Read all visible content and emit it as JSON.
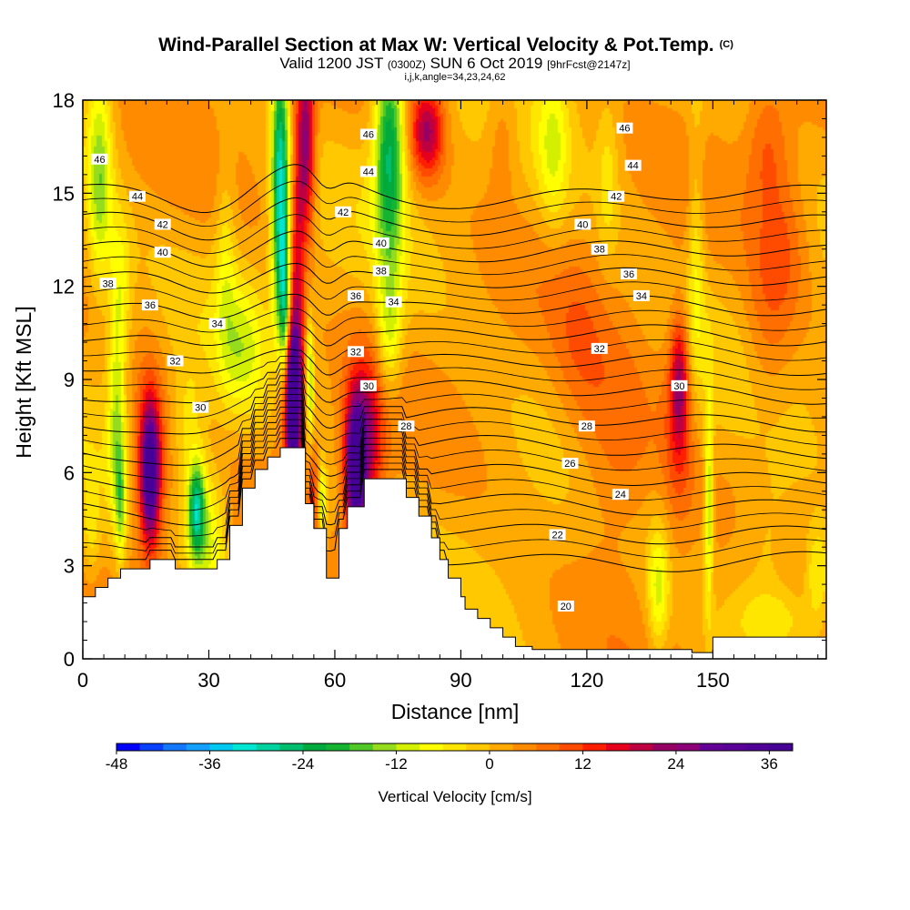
{
  "chart_data": {
    "type": "heatmap",
    "title": "Wind-Parallel Section at Max W: Vertical Velocity & Pot.Temp.",
    "title_unit": "(C)",
    "subtitle_parts": [
      "Valid 1200 JST ",
      "(0300Z)",
      " SUN 6 Oct 2019 ",
      "[9hrFcst@2147z]"
    ],
    "subtitle2": "i,j,k,angle=34,23,24,62",
    "xlabel": "Distance [nm]",
    "ylabel": "Height [Kft MSL]",
    "xlim": [
      0,
      177
    ],
    "ylim": [
      0,
      18
    ],
    "xticks": [
      0,
      30,
      60,
      90,
      120,
      150
    ],
    "yticks": [
      0,
      3,
      6,
      9,
      12,
      15,
      18
    ],
    "colorbar": {
      "label": "Vertical Velocity [cm/s]",
      "min": -48,
      "max": 39,
      "step": 3,
      "ticks": [
        -48,
        -36,
        -24,
        -12,
        0,
        12,
        24,
        36
      ],
      "colors": [
        "#0000ff",
        "#0a40ff",
        "#1478ff",
        "#14a0ff",
        "#00c8f0",
        "#00e6d2",
        "#00d2a0",
        "#00be6e",
        "#00aa3c",
        "#14b432",
        "#50c828",
        "#96dc1e",
        "#d2f000",
        "#ffff00",
        "#ffe600",
        "#ffc800",
        "#ffaa00",
        "#ff8c00",
        "#ff6e00",
        "#ff4b00",
        "#ff1e00",
        "#e6001e",
        "#be0041",
        "#960064",
        "#8c0078",
        "#640096",
        "#5a0096",
        "#500096",
        "#460096"
      ]
    },
    "terrain": [
      [
        0,
        2.0
      ],
      [
        3,
        2.0
      ],
      [
        3,
        2.3
      ],
      [
        6,
        2.3
      ],
      [
        6,
        2.6
      ],
      [
        9,
        2.6
      ],
      [
        9,
        2.9
      ],
      [
        16,
        2.9
      ],
      [
        16,
        3.2
      ],
      [
        22,
        3.2
      ],
      [
        22,
        2.9
      ],
      [
        32,
        2.9
      ],
      [
        32,
        3.2
      ],
      [
        35,
        3.2
      ],
      [
        35,
        4.3
      ],
      [
        38,
        4.3
      ],
      [
        38,
        5.5
      ],
      [
        41,
        5.5
      ],
      [
        41,
        6.1
      ],
      [
        44,
        6.1
      ],
      [
        44,
        6.5
      ],
      [
        47,
        6.5
      ],
      [
        47,
        6.8
      ],
      [
        53,
        6.8
      ],
      [
        53,
        5.0
      ],
      [
        55,
        5.0
      ],
      [
        55,
        4.2
      ],
      [
        58,
        4.2
      ],
      [
        58,
        2.6
      ],
      [
        61,
        2.6
      ],
      [
        61,
        4.2
      ],
      [
        63,
        4.2
      ],
      [
        63,
        4.9
      ],
      [
        67,
        4.9
      ],
      [
        67,
        5.8
      ],
      [
        77,
        5.8
      ],
      [
        77,
        5.2
      ],
      [
        80,
        5.2
      ],
      [
        80,
        4.6
      ],
      [
        83,
        4.6
      ],
      [
        83,
        3.9
      ],
      [
        85,
        3.9
      ],
      [
        85,
        3.2
      ],
      [
        87,
        3.2
      ],
      [
        87,
        2.6
      ],
      [
        90,
        2.6
      ],
      [
        90,
        2.0
      ],
      [
        91,
        2.0
      ],
      [
        91,
        1.6
      ],
      [
        94,
        1.6
      ],
      [
        94,
        1.3
      ],
      [
        97,
        1.3
      ],
      [
        97,
        1.0
      ],
      [
        100,
        1.0
      ],
      [
        100,
        0.7
      ],
      [
        103,
        0.7
      ],
      [
        103,
        0.4
      ],
      [
        107,
        0.4
      ],
      [
        107,
        0.3
      ],
      [
        145,
        0.3
      ],
      [
        145,
        0.2
      ],
      [
        150,
        0.2
      ],
      [
        150,
        0.7
      ],
      [
        177,
        0.7
      ]
    ],
    "vertical_velocity_features": [
      {
        "x": 50,
        "z": 7.9,
        "rx": 1.4,
        "rz": 2.2,
        "w": 40
      },
      {
        "x": 50,
        "z": 8.6,
        "rx": 3.5,
        "rz": 2.4,
        "w": 18
      },
      {
        "x": 51,
        "z": 12.0,
        "rx": 1.6,
        "rz": 4.0,
        "w": 14
      },
      {
        "x": 53,
        "z": 16.5,
        "rx": 2.2,
        "rz": 3.0,
        "w": 24
      },
      {
        "x": 47,
        "z": 15.0,
        "rx": 2.0,
        "rz": 4.5,
        "w": -32
      },
      {
        "x": 48,
        "z": 11.5,
        "rx": 1.2,
        "rz": 2.5,
        "w": -18
      },
      {
        "x": 54,
        "z": 9.0,
        "rx": 1.0,
        "rz": 2.0,
        "w": -18
      },
      {
        "x": 55,
        "z": 5.3,
        "rx": 1.2,
        "rz": 1.5,
        "w": 10
      },
      {
        "x": 57,
        "z": 5.0,
        "rx": 1.0,
        "rz": 1.2,
        "w": -14
      },
      {
        "x": 65,
        "z": 6.0,
        "rx": 2.2,
        "rz": 2.0,
        "w": 36
      },
      {
        "x": 67,
        "z": 7.0,
        "rx": 4.5,
        "rz": 2.5,
        "w": 20
      },
      {
        "x": 73,
        "z": 10.5,
        "rx": 3.0,
        "rz": 2.2,
        "w": -12
      },
      {
        "x": 73,
        "z": 16.5,
        "rx": 3.5,
        "rz": 3.5,
        "w": -26
      },
      {
        "x": 82,
        "z": 17.0,
        "rx": 4.0,
        "rz": 1.5,
        "w": 20
      },
      {
        "x": 4,
        "z": 15.5,
        "rx": 3.0,
        "rz": 3.5,
        "w": -16
      },
      {
        "x": 9,
        "z": 12.0,
        "rx": 2.5,
        "rz": 2.5,
        "w": -8
      },
      {
        "x": 8,
        "z": 8.0,
        "rx": 2.0,
        "rz": 3.5,
        "w": -12
      },
      {
        "x": 2,
        "z": 4.0,
        "rx": 2.0,
        "rz": 1.5,
        "w": -6
      },
      {
        "x": 16,
        "z": 6.0,
        "rx": 2.0,
        "rz": 2.0,
        "w": 30
      },
      {
        "x": 16,
        "z": 6.2,
        "rx": 4.0,
        "rz": 3.2,
        "w": 14
      },
      {
        "x": 9,
        "z": 5.0,
        "rx": 1.2,
        "rz": 2.0,
        "w": -12
      },
      {
        "x": 27,
        "z": 4.8,
        "rx": 2.0,
        "rz": 1.5,
        "w": -26
      },
      {
        "x": 30,
        "z": 4.0,
        "rx": 4.5,
        "rz": 2.3,
        "w": -12
      },
      {
        "x": 38,
        "z": 10.0,
        "rx": 5.0,
        "rz": 2.2,
        "w": -9
      },
      {
        "x": 25,
        "z": 7.5,
        "rx": 4.0,
        "rz": 2.0,
        "w": -6
      },
      {
        "x": 34,
        "z": 13.0,
        "rx": 2.5,
        "rz": 3.5,
        "w": -7
      },
      {
        "x": 112,
        "z": 16.5,
        "rx": 3.5,
        "rz": 2.5,
        "w": -9
      },
      {
        "x": 118,
        "z": 10.0,
        "rx": 6.0,
        "rz": 3.0,
        "w": 4
      },
      {
        "x": 125,
        "z": 15.5,
        "rx": 2.5,
        "rz": 2.5,
        "w": -6
      },
      {
        "x": 146,
        "z": 13.0,
        "rx": 2.0,
        "rz": 4.5,
        "w": -8
      },
      {
        "x": 142,
        "z": 9.0,
        "rx": 2.0,
        "rz": 2.0,
        "w": 15
      },
      {
        "x": 142,
        "z": 7.5,
        "rx": 4.0,
        "rz": 3.5,
        "w": 9
      },
      {
        "x": 149,
        "z": 5.0,
        "rx": 1.0,
        "rz": 3.5,
        "w": -14
      },
      {
        "x": 137,
        "z": 2.2,
        "rx": 2.5,
        "rz": 2.0,
        "w": -12
      },
      {
        "x": 127,
        "z": 6.5,
        "rx": 10.0,
        "rz": 3.5,
        "w": 8
      },
      {
        "x": 163,
        "z": 10.5,
        "rx": 6.0,
        "rz": 3.0,
        "w": 6
      },
      {
        "x": 163,
        "z": 3.5,
        "rx": 8.0,
        "rz": 2.5,
        "w": -6
      },
      {
        "x": 165,
        "z": 1.3,
        "rx": 10.0,
        "rz": 1.0,
        "w": -6
      },
      {
        "x": 175,
        "z": 2.8,
        "rx": 3.0,
        "rz": 1.5,
        "w": -10
      },
      {
        "x": 163,
        "z": 16.5,
        "rx": 5.0,
        "rz": 2.0,
        "w": 7
      },
      {
        "x": 100,
        "z": 17.0,
        "rx": 4.0,
        "rz": 2.0,
        "w": 6
      },
      {
        "x": 167,
        "z": 13.5,
        "rx": 6.0,
        "rz": 2.5,
        "w": 6
      }
    ],
    "theta_isentropes": [
      {
        "base": 7.45,
        "label": "46",
        "labels_at": [
          [
            4,
            16.1
          ],
          [
            68,
            16.9
          ],
          [
            129,
            17.1
          ]
        ]
      },
      {
        "base": 7.0,
        "label": "44",
        "labels_at": [
          [
            13,
            14.9
          ],
          [
            68,
            15.7
          ],
          [
            131,
            15.9
          ]
        ]
      },
      {
        "base": 6.55,
        "label": "42",
        "labels_at": [
          [
            19,
            14.0
          ],
          [
            62,
            14.4
          ],
          [
            127,
            14.9
          ]
        ]
      },
      {
        "base": 6.1,
        "label": "40",
        "labels_at": [
          [
            19,
            13.1
          ],
          [
            71,
            13.4
          ],
          [
            119,
            14.0
          ]
        ]
      },
      {
        "base": 5.65,
        "label": "38",
        "labels_at": [
          [
            6,
            12.1
          ],
          [
            71,
            12.5
          ],
          [
            123,
            13.2
          ]
        ]
      },
      {
        "base": 5.2,
        "label": "36",
        "labels_at": [
          [
            16,
            11.4
          ],
          [
            65,
            11.7
          ],
          [
            130,
            12.4
          ]
        ]
      },
      {
        "base": 4.75,
        "label": "34",
        "labels_at": [
          [
            32,
            10.8
          ],
          [
            74,
            11.5
          ],
          [
            133,
            11.7
          ]
        ]
      },
      {
        "base": 4.3,
        "label": "32",
        "labels_at": [
          [
            22,
            9.6
          ],
          [
            65,
            9.9
          ],
          [
            123,
            10.0
          ]
        ]
      },
      {
        "base": 3.85,
        "label": "30",
        "labels_at": [
          [
            28,
            8.1
          ],
          [
            68,
            8.8
          ],
          [
            142,
            8.8
          ]
        ]
      },
      {
        "base": 3.4,
        "label": "28",
        "labels_at": [
          [
            77,
            7.5
          ],
          [
            120,
            7.5
          ]
        ]
      },
      {
        "base": 2.95,
        "label": "26",
        "labels_at": [
          [
            116,
            6.3
          ]
        ]
      },
      {
        "base": 2.5,
        "label": "24",
        "labels_at": [
          [
            128,
            5.3
          ]
        ]
      },
      {
        "base": 2.05,
        "label": "22",
        "labels_at": [
          [
            113,
            4.0
          ]
        ]
      },
      {
        "base": 1.6,
        "label": "20",
        "labels_at": [
          [
            115,
            1.7
          ]
        ]
      }
    ]
  }
}
